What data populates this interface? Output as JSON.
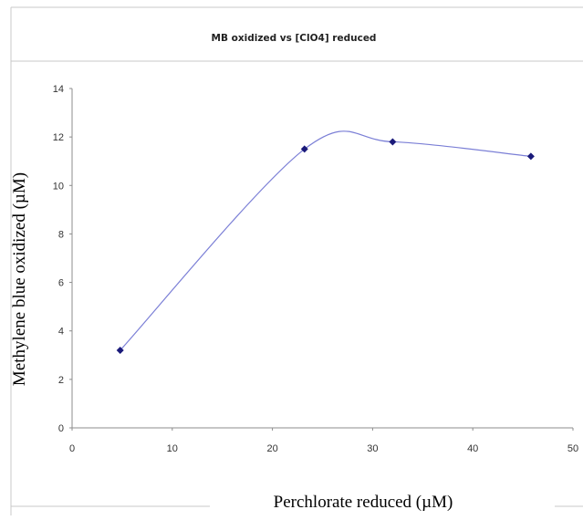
{
  "chart_data": {
    "type": "scatter",
    "title": "MB oxidized vs [ClO4] reduced",
    "xlabel": "Perchlorate reduced (µM)",
    "ylabel": "Methylene blue oxidized (µM)",
    "xlim": [
      0,
      50
    ],
    "ylim": [
      0,
      14
    ],
    "x_ticks": [
      "0",
      "10",
      "20",
      "30",
      "40",
      "50"
    ],
    "y_ticks": [
      "0",
      "2",
      "4",
      "6",
      "8",
      "10",
      "12",
      "14"
    ],
    "grid": false,
    "legend": "none",
    "series": [
      {
        "marker": "diamond",
        "line": "smoothed",
        "color": "#1a1a7a",
        "line_color": "#7b7fd6",
        "x": [
          4.8,
          23.2,
          32.0,
          45.8
        ],
        "y": [
          3.2,
          11.5,
          11.8,
          11.2
        ]
      }
    ]
  }
}
